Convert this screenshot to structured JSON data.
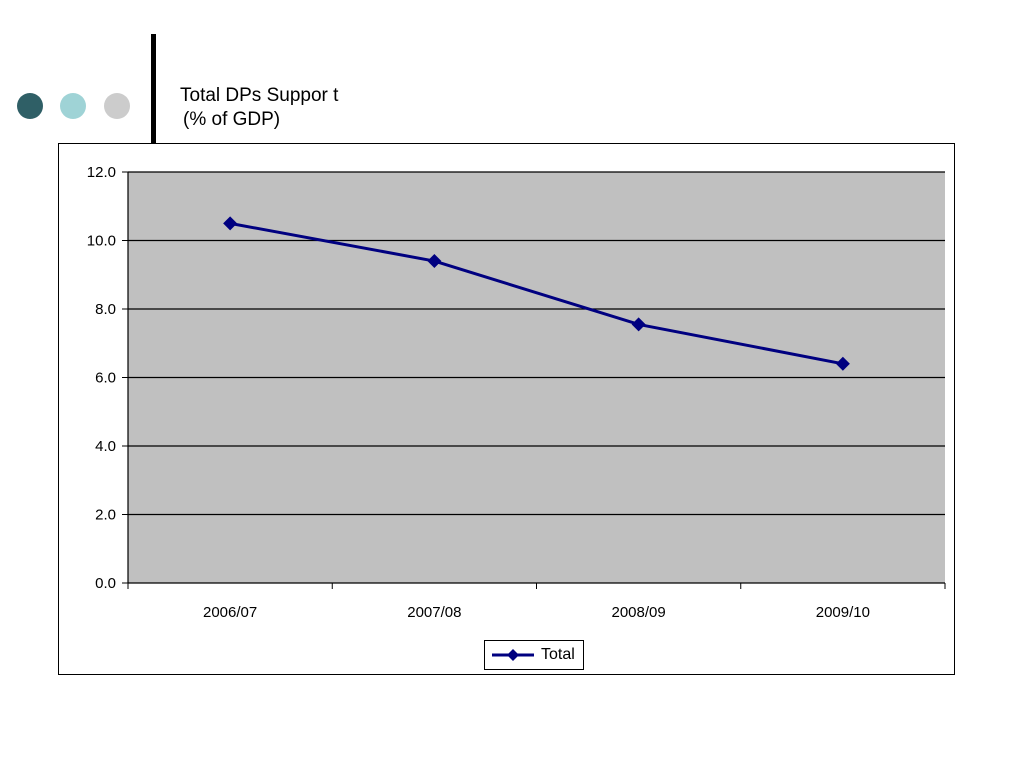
{
  "decor": {
    "dots": [
      "#2f5f66",
      "#9fd3d6",
      "#cccccc"
    ]
  },
  "title": {
    "line1": "Total DPs Suppor t",
    "line2": "(% of GDP)"
  },
  "chart_data": {
    "type": "line",
    "title": "Total DPs Suppor t (% of GDP)",
    "categories": [
      "2006/07",
      "2007/08",
      "2008/09",
      "2009/10"
    ],
    "series": [
      {
        "name": "Total",
        "values": [
          10.5,
          9.4,
          7.55,
          6.4
        ],
        "color": "#000080",
        "marker": "diamond"
      }
    ],
    "y_ticks": [
      "0.0",
      "2.0",
      "4.0",
      "6.0",
      "8.0",
      "10.0",
      "12.0"
    ],
    "ylim": [
      0,
      12
    ],
    "grid": true,
    "plot_background": "#c0c0c0",
    "legend": "bottom"
  }
}
